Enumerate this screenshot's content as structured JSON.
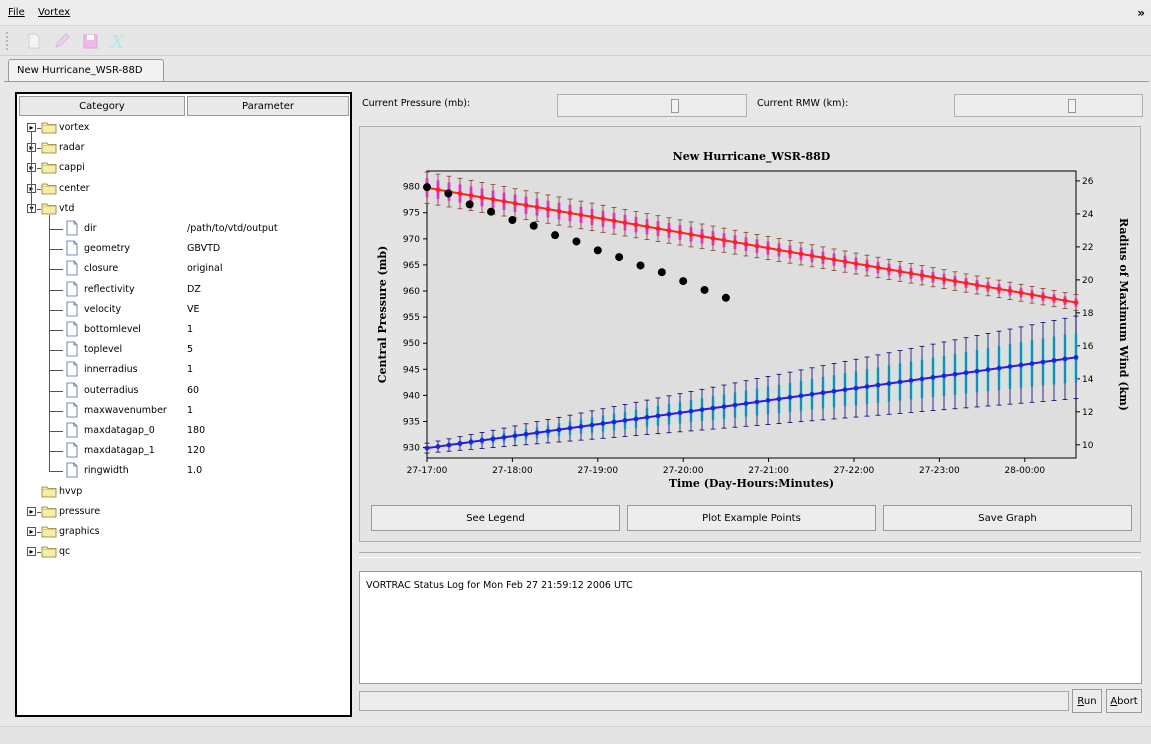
{
  "menubar": {
    "items": [
      {
        "label": "File"
      },
      {
        "label": "Vortex"
      }
    ],
    "overflow": "»"
  },
  "toolbar": {
    "icons": [
      "new-document-icon",
      "edit-pencil-icon",
      "save-disk-icon",
      "clear-x-icon"
    ]
  },
  "tabs": [
    {
      "label": "New Hurricane_WSR-88D"
    }
  ],
  "tree": {
    "headers": [
      "Category",
      "Parameter"
    ],
    "groups": [
      {
        "label": "vortex",
        "expanded": false
      },
      {
        "label": "radar",
        "expanded": false
      },
      {
        "label": "cappi",
        "expanded": false
      },
      {
        "label": "center",
        "expanded": false
      },
      {
        "label": "vtd",
        "expanded": true
      }
    ],
    "vtd_params": [
      {
        "name": "dir",
        "value": "/path/to/vtd/output"
      },
      {
        "name": "geometry",
        "value": "GBVTD"
      },
      {
        "name": "closure",
        "value": "original"
      },
      {
        "name": "reflectivity",
        "value": "DZ"
      },
      {
        "name": "velocity",
        "value": "VE"
      },
      {
        "name": "bottomlevel",
        "value": "1"
      },
      {
        "name": "toplevel",
        "value": "5"
      },
      {
        "name": "innerradius",
        "value": "1"
      },
      {
        "name": "outerradius",
        "value": "60"
      },
      {
        "name": "maxwavenumber",
        "value": "1"
      },
      {
        "name": "maxdatagap_0",
        "value": "180"
      },
      {
        "name": "maxdatagap_1",
        "value": "120"
      },
      {
        "name": "ringwidth",
        "value": "1.0"
      }
    ],
    "after_groups": [
      {
        "label": "hvvp",
        "expandable": false
      },
      {
        "label": "pressure",
        "expandable": true
      },
      {
        "label": "graphics",
        "expandable": true
      },
      {
        "label": "qc",
        "expandable": true
      }
    ]
  },
  "readouts": {
    "pressure_label": "Current Pressure (mb):",
    "rmw_label": "Current RMW (km):"
  },
  "buttons": {
    "legend": "See Legend",
    "example": "Plot Example Points",
    "save": "Save Graph"
  },
  "log": {
    "text": "VORTRAC Status Log for Mon Feb 27 21:59:12 2006 UTC"
  },
  "run": {
    "label_u": "R",
    "label_rest": "un"
  },
  "abort": {
    "label_u": "A",
    "label_rest": "bort"
  },
  "colors": {
    "pressure_line": "#ff2020",
    "pressure_err": "#8a3a2a",
    "pressure_band": "#ff40ff",
    "rmw_line": "#2020e0",
    "rmw_err": "#000070",
    "rmw_band": "#40e0e0",
    "example_points": "#000000"
  },
  "chart_data": {
    "type": "line",
    "title": "New Hurricane_WSR-88D",
    "xlabel": "Time (Day-Hours:Minutes)",
    "ylabel": "Central Pressure (mb)",
    "y2label": "Radius of Maximum Wind (km)",
    "x_ticks": [
      "27-17:00",
      "27-18:00",
      "27-19:00",
      "27-20:00",
      "27-21:00",
      "27-22:00",
      "27-23:00",
      "28-00:00"
    ],
    "x_range_hours": [
      17,
      24.6
    ],
    "x_unit": "hours",
    "ylim": [
      928,
      983
    ],
    "y_ticks": [
      930,
      935,
      940,
      945,
      950,
      955,
      960,
      965,
      970,
      975,
      980
    ],
    "y2lim": [
      9.2,
      26.6
    ],
    "y2_ticks": [
      10,
      12,
      14,
      16,
      18,
      20,
      22,
      24,
      26
    ],
    "grid": false,
    "series": [
      {
        "axis": "left",
        "start_hour": 17.0,
        "end_hour": 24.6,
        "count": 60,
        "start_value": 979.8,
        "end_value": 957.8,
        "err_start": 3.0,
        "err_end": 1.5,
        "band_start": 1.8,
        "band_end": 0.8
      },
      {
        "axis": "right",
        "start_hour": 17.0,
        "end_hour": 24.6,
        "count": 60,
        "start_value": 9.8,
        "end_value": 15.3,
        "err_start": 0.3,
        "err_end": 2.5,
        "band_start": 0.1,
        "band_end": 1.5
      },
      {
        "axis": "left",
        "points": [
          [
            17.0,
            979.9
          ],
          [
            17.25,
            978.7
          ],
          [
            17.5,
            976.6
          ],
          [
            17.75,
            975.2
          ],
          [
            18.0,
            973.6
          ],
          [
            18.25,
            972.5
          ],
          [
            18.5,
            970.7
          ],
          [
            18.75,
            969.5
          ],
          [
            19.0,
            967.8
          ],
          [
            19.25,
            966.5
          ],
          [
            19.5,
            964.9
          ],
          [
            19.75,
            963.6
          ],
          [
            20.0,
            961.9
          ],
          [
            20.25,
            960.2
          ],
          [
            20.5,
            958.7
          ]
        ]
      }
    ]
  }
}
